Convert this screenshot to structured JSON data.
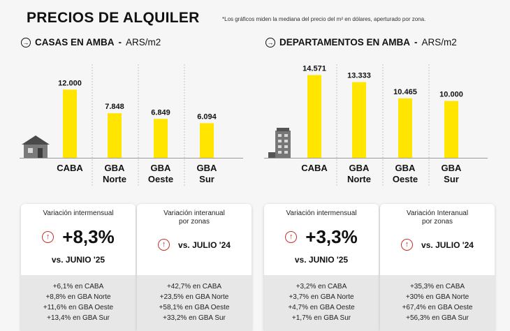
{
  "title": "PRECIOS DE ALQUILER",
  "note": "*Los gráficos miden la mediana del precio del m² en dólares, aperturado por zona.",
  "icons": {
    "section": "arrow-right-icon",
    "up": "arrow-up-icon",
    "house": "house-icon",
    "building": "building-icon"
  },
  "colors": {
    "bar": "#ffe500",
    "up": "#c9302c"
  },
  "chart_data": [
    {
      "type": "bar",
      "title": "CASAS EN AMBA",
      "unit": "ARS/m2",
      "categories": [
        "CABA",
        "GBA Norte",
        "GBA Oeste",
        "GBA Sur"
      ],
      "values": [
        12.0,
        7.848,
        6.849,
        6.094
      ],
      "labels": [
        "12.000",
        "7.848",
        "6.849",
        "6.094"
      ],
      "ylim": [
        0,
        15
      ]
    },
    {
      "type": "bar",
      "title": "DEPARTAMENTOS EN AMBA",
      "unit": "ARS/m2",
      "categories": [
        "CABA",
        "GBA Norte",
        "GBA Oeste",
        "GBA Sur"
      ],
      "values": [
        14.571,
        13.333,
        10.465,
        10.0
      ],
      "labels": [
        "14.571",
        "13.333",
        "10.465",
        "10.000"
      ],
      "ylim": [
        0,
        15
      ]
    }
  ],
  "cards": [
    {
      "label": "Variación intermensual",
      "big": "+8,3%",
      "vs": "vs. JUNIO '25",
      "items": [
        "+6,1% en CABA",
        "+8,8% en GBA Norte",
        "+11,6% en GBA Oeste",
        "+13,4% en GBA Sur"
      ]
    },
    {
      "label": "Variación interanual por zonas",
      "big": "",
      "vs": "vs. JULIO '24",
      "items": [
        "+42,7% en CABA",
        "+23,5% en GBA Norte",
        "+58,1% en GBA Oeste",
        "+33,2% en GBA Sur"
      ]
    },
    {
      "label": "Variación intermensual",
      "big": "+3,3%",
      "vs": "vs. JUNIO '25",
      "items": [
        "+3,2% en CABA",
        "+3,7% en GBA Norte",
        "+4,7% en GBA Oeste",
        "+1,7% en GBA Sur"
      ]
    },
    {
      "label": "Variación Interanual por zonas",
      "big": "",
      "vs": "vs. JULIO '24",
      "items": [
        "+35,3% en CABA",
        "+30% en GBA Norte",
        "+67,4% en GBA Oeste",
        "+56,3% en GBA Sur"
      ]
    }
  ]
}
